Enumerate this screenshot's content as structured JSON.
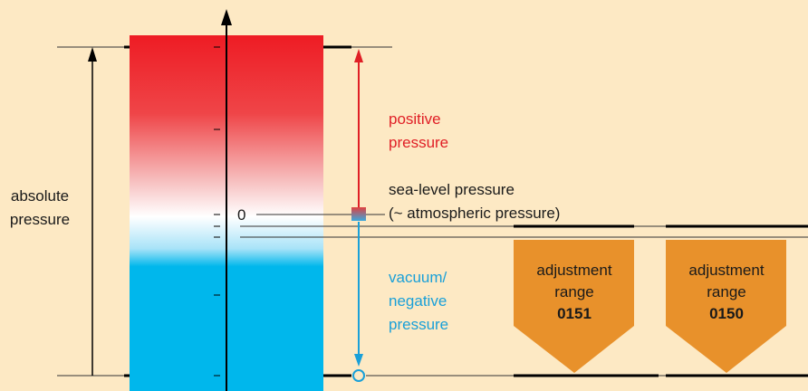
{
  "colors": {
    "background": "#fde9c4",
    "positive": "#e01f26",
    "negative": "#1aa0d8",
    "column_top": "#ee1c24",
    "column_bottom": "#00b7ec",
    "badge": "#e8912b",
    "line": "#000000"
  },
  "labels": {
    "absolute_line1": "absolute",
    "absolute_line2": "pressure",
    "positive_line1": "positive",
    "positive_line2": "pressure",
    "sealevel_line1": "sea-level pressure",
    "sealevel_line2": "(~ atmospheric pressure)",
    "vacuum_line1": "vacuum/",
    "vacuum_line2": "negative",
    "vacuum_line3": "pressure",
    "zero": "0"
  },
  "adjustment_ranges": [
    {
      "line1": "adjustment",
      "line2": "range",
      "code": "0151"
    },
    {
      "line1": "adjustment",
      "line2": "range",
      "code": "0150"
    }
  ],
  "icons": [
    "up-arrow-icon",
    "down-arrow-icon",
    "circle-marker-icon",
    "square-marker-icon"
  ]
}
